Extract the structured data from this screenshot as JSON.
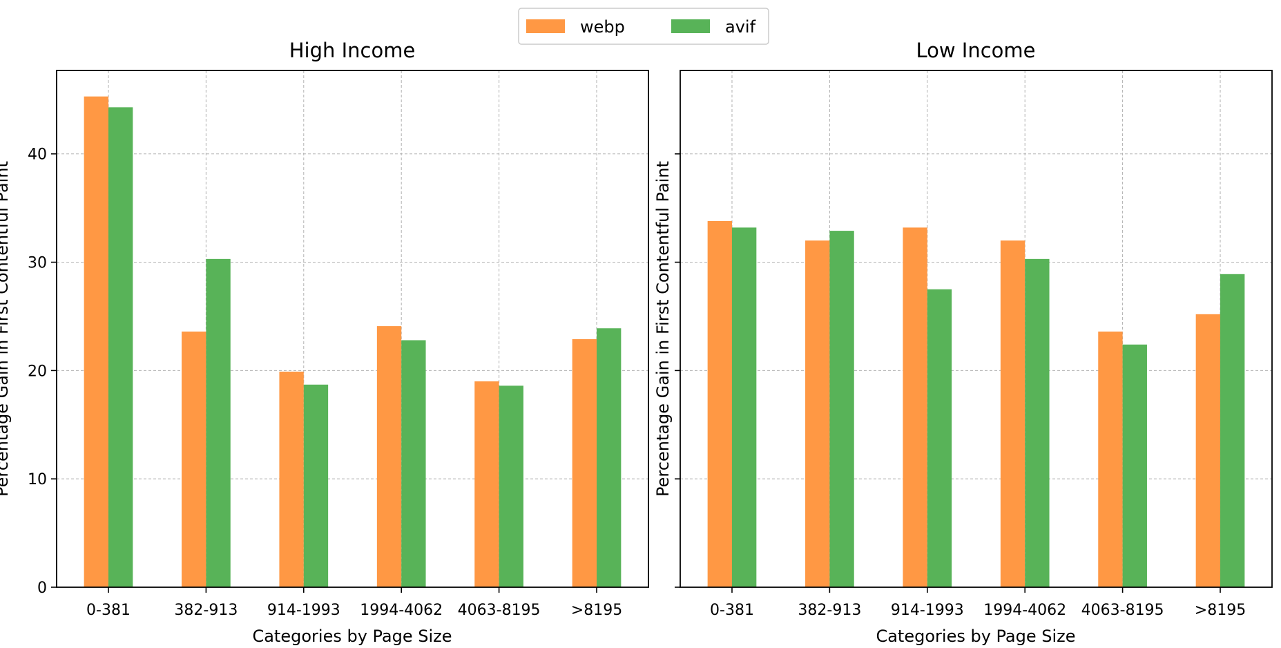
{
  "legend": {
    "entries": [
      "webp",
      "avif"
    ],
    "colors": [
      "#ff9844",
      "#58b358"
    ],
    "placement": "upper-center"
  },
  "chart_data": [
    {
      "type": "bar",
      "title": "High Income",
      "xlabel": "Categories by Page Size",
      "ylabel": "Percentage Gain in First Contentful Paint",
      "categories": [
        "0-381",
        "382-913",
        "914-1993",
        "1994-4062",
        "4063-8195",
        ">8195"
      ],
      "series": [
        {
          "name": "webp",
          "color": "#ff9844",
          "values": [
            45.3,
            23.6,
            19.9,
            24.1,
            19.0,
            22.9
          ]
        },
        {
          "name": "avif",
          "color": "#58b358",
          "values": [
            44.3,
            30.3,
            18.7,
            22.8,
            18.6,
            23.9
          ]
        }
      ],
      "ylim": [
        0,
        47.7
      ],
      "yticks": [
        0,
        10,
        20,
        30,
        40
      ],
      "show_ytick_labels": true,
      "grid": true
    },
    {
      "type": "bar",
      "title": "Low Income",
      "xlabel": "Categories by Page Size",
      "ylabel": "Percentage Gain in First Contentful Paint",
      "categories": [
        "0-381",
        "382-913",
        "914-1993",
        "1994-4062",
        "4063-8195",
        ">8195"
      ],
      "series": [
        {
          "name": "webp",
          "color": "#ff9844",
          "values": [
            33.8,
            32.0,
            33.2,
            32.0,
            23.6,
            25.2
          ]
        },
        {
          "name": "avif",
          "color": "#58b358",
          "values": [
            33.2,
            32.9,
            27.5,
            30.3,
            22.4,
            28.9
          ]
        }
      ],
      "ylim": [
        0,
        47.7
      ],
      "yticks": [
        0,
        10,
        20,
        30,
        40
      ],
      "show_ytick_labels": false,
      "grid": true
    }
  ]
}
